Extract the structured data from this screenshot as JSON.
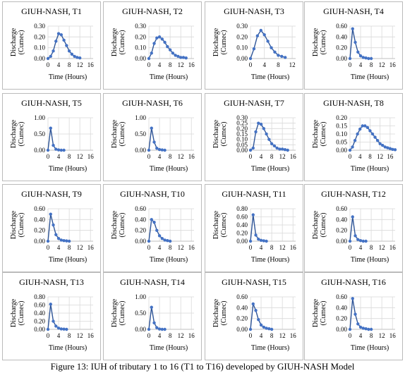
{
  "caption": "Figure 13: IUH of tributary 1 to 16 (T1 to T16) developed by GIUH-NASH Model",
  "chart_data": [
    {
      "type": "line",
      "title": "GIUH-NASH, T1",
      "ylabel": [
        "Discharge",
        "(Cumec)"
      ],
      "xlabel": "Time (Hours)",
      "color": "#4472c4",
      "grid": true,
      "x": [
        0,
        1,
        2,
        3,
        4,
        5,
        6,
        7,
        8,
        9,
        10,
        11,
        12
      ],
      "values": [
        0,
        0.02,
        0.07,
        0.16,
        0.23,
        0.22,
        0.17,
        0.12,
        0.07,
        0.04,
        0.02,
        0.01,
        0.005
      ],
      "xlim": [
        0,
        17
      ],
      "xticks": [
        0,
        4,
        8,
        12,
        16
      ],
      "ylim": [
        0,
        0.3
      ],
      "yticks": [
        {
          "value": 0,
          "label": "0.00"
        },
        {
          "value": 0.1,
          "label": "0.10"
        },
        {
          "value": 0.2,
          "label": "0.20"
        },
        {
          "value": 0.3,
          "label": "0.30"
        }
      ]
    },
    {
      "type": "line",
      "title": "GIUH-NASH, T2",
      "ylabel": [
        "Discharge",
        "(Cumec)"
      ],
      "xlabel": "Time (Hours)",
      "color": "#4472c4",
      "grid": true,
      "x": [
        0,
        1,
        2,
        3,
        4,
        5,
        6,
        7,
        8,
        9,
        10,
        11,
        12,
        13,
        14
      ],
      "values": [
        0,
        0.05,
        0.14,
        0.19,
        0.2,
        0.18,
        0.15,
        0.11,
        0.08,
        0.05,
        0.03,
        0.02,
        0.01,
        0.01,
        0.005
      ],
      "xlim": [
        0,
        17
      ],
      "xticks": [
        0,
        4,
        8,
        12,
        16
      ],
      "ylim": [
        0,
        0.3
      ],
      "yticks": [
        {
          "value": 0,
          "label": "0.00"
        },
        {
          "value": 0.1,
          "label": "0.10"
        },
        {
          "value": 0.2,
          "label": "0.20"
        },
        {
          "value": 0.3,
          "label": "0.30"
        }
      ]
    },
    {
      "type": "line",
      "title": "GIUH-NASH, T3",
      "ylabel": [
        "Discharge",
        "(Cumec)"
      ],
      "xlabel": "Time (Hours)",
      "color": "#4472c4",
      "grid": true,
      "x": [
        0,
        1,
        2,
        3,
        4,
        5,
        6,
        7,
        8,
        9,
        10
      ],
      "values": [
        0,
        0.09,
        0.21,
        0.26,
        0.22,
        0.16,
        0.1,
        0.06,
        0.03,
        0.02,
        0.01
      ],
      "xlim": [
        0,
        13
      ],
      "xticks": [
        0,
        4,
        8,
        12
      ],
      "ylim": [
        0,
        0.3
      ],
      "yticks": [
        {
          "value": 0,
          "label": "0.00"
        },
        {
          "value": 0.1,
          "label": "0.10"
        },
        {
          "value": 0.2,
          "label": "0.20"
        },
        {
          "value": 0.3,
          "label": "0.30"
        }
      ]
    },
    {
      "type": "line",
      "title": "GIUH-NASH, T4",
      "ylabel": [
        "Discharge",
        "(Cumec)"
      ],
      "xlabel": "Time (Hours)",
      "color": "#4472c4",
      "grid": true,
      "x": [
        0,
        1,
        2,
        3,
        4,
        5,
        6,
        7,
        8
      ],
      "values": [
        0,
        0.55,
        0.3,
        0.12,
        0.05,
        0.02,
        0.01,
        0,
        0
      ],
      "xlim": [
        0,
        17
      ],
      "xticks": [
        0,
        4,
        8,
        12,
        16
      ],
      "ylim": [
        0,
        0.6
      ],
      "yticks": [
        {
          "value": 0,
          "label": "0.00"
        },
        {
          "value": 0.2,
          "label": "0.20"
        },
        {
          "value": 0.4,
          "label": "0.40"
        },
        {
          "value": 0.6,
          "label": "0.60"
        }
      ]
    },
    {
      "type": "line",
      "title": "GIUH-NASH, T5",
      "ylabel": [
        "Discharge",
        "(Cumec)"
      ],
      "xlabel": "Time (Hours)",
      "color": "#4472c4",
      "grid": true,
      "x": [
        0,
        1,
        2,
        3,
        4,
        5,
        6
      ],
      "values": [
        0,
        0.68,
        0.15,
        0.03,
        0.01,
        0,
        0
      ],
      "xlim": [
        0,
        17
      ],
      "xticks": [
        0,
        4,
        8,
        12,
        16
      ],
      "ylim": [
        0,
        1
      ],
      "yticks": [
        {
          "value": 0,
          "label": "0.00"
        },
        {
          "value": 0.5,
          "label": "0.50"
        },
        {
          "value": 1,
          "label": "1.00"
        }
      ]
    },
    {
      "type": "line",
      "title": "GIUH-NASH, T6",
      "ylabel": [
        "Discharge",
        "(Cumec)"
      ],
      "xlabel": "Time (Hours)",
      "color": "#4472c4",
      "grid": true,
      "x": [
        0,
        1,
        2,
        3,
        4,
        5,
        6
      ],
      "values": [
        0,
        0.68,
        0.25,
        0.06,
        0.02,
        0.01,
        0
      ],
      "xlim": [
        0,
        17
      ],
      "xticks": [
        0,
        4,
        8,
        12,
        16
      ],
      "ylim": [
        0,
        1
      ],
      "yticks": [
        {
          "value": 0,
          "label": "0.00"
        },
        {
          "value": 0.5,
          "label": "0.50"
        },
        {
          "value": 1,
          "label": "1.00"
        }
      ]
    },
    {
      "type": "line",
      "title": "GIUH-NASH, T7",
      "ylabel": [
        "Discharge",
        "(Cumec)"
      ],
      "xlabel": "Time (Hours)",
      "color": "#4472c4",
      "grid": true,
      "x": [
        0,
        1,
        2,
        3,
        4,
        5,
        6,
        7,
        8,
        9,
        10,
        11,
        12,
        13,
        14
      ],
      "values": [
        0,
        0.02,
        0.17,
        0.25,
        0.24,
        0.2,
        0.15,
        0.1,
        0.06,
        0.04,
        0.02,
        0.01,
        0.01,
        0.005,
        0
      ],
      "xlim": [
        0,
        17
      ],
      "xticks": [
        0,
        4,
        8,
        12,
        16
      ],
      "ylim": [
        0,
        0.3
      ],
      "yticks": [
        {
          "value": 0,
          "label": "0.00"
        },
        {
          "value": 0.05,
          "label": "0.05"
        },
        {
          "value": 0.1,
          "label": "0.10"
        },
        {
          "value": 0.15,
          "label": "0.15"
        },
        {
          "value": 0.2,
          "label": "0.20"
        },
        {
          "value": 0.25,
          "label": "0.25"
        },
        {
          "value": 0.3,
          "label": "0.30"
        }
      ]
    },
    {
      "type": "line",
      "title": "GIUH-NASH, T8",
      "ylabel": [
        "Discharge",
        "(Cumec)"
      ],
      "xlabel": "Time (Hours)",
      "color": "#4472c4",
      "grid": true,
      "x": [
        0,
        1,
        2,
        3,
        4,
        5,
        6,
        7,
        8,
        9,
        10,
        11,
        12,
        13,
        14,
        15,
        16,
        17,
        18
      ],
      "values": [
        0,
        0.02,
        0.06,
        0.1,
        0.13,
        0.15,
        0.15,
        0.14,
        0.12,
        0.1,
        0.08,
        0.06,
        0.04,
        0.03,
        0.02,
        0.015,
        0.01,
        0.005,
        0.003
      ],
      "xlim": [
        0,
        18
      ],
      "xticks": [
        0,
        4,
        8,
        12,
        16
      ],
      "ylim": [
        0,
        0.2
      ],
      "yticks": [
        {
          "value": 0,
          "label": "0.00"
        },
        {
          "value": 0.05,
          "label": "0.05"
        },
        {
          "value": 0.1,
          "label": "0.10"
        },
        {
          "value": 0.15,
          "label": "0.15"
        },
        {
          "value": 0.2,
          "label": "0.20"
        }
      ]
    },
    {
      "type": "line",
      "title": "GIUH-NASH, T9",
      "ylabel": [
        "Discharge",
        "(Cumec)"
      ],
      "xlabel": "Time (Hours)",
      "color": "#4472c4",
      "grid": true,
      "x": [
        0,
        1,
        2,
        3,
        4,
        5,
        6,
        7,
        8
      ],
      "values": [
        0,
        0.5,
        0.3,
        0.12,
        0.05,
        0.02,
        0.01,
        0.005,
        0
      ],
      "xlim": [
        0,
        17
      ],
      "xticks": [
        0,
        4,
        8,
        12,
        16
      ],
      "ylim": [
        0,
        0.6
      ],
      "yticks": [
        {
          "value": 0,
          "label": "0.00"
        },
        {
          "value": 0.2,
          "label": "0.20"
        },
        {
          "value": 0.4,
          "label": "0.40"
        },
        {
          "value": 0.6,
          "label": "0.60"
        }
      ]
    },
    {
      "type": "line",
      "title": "GIUH-NASH, T10",
      "ylabel": [
        "Discharge",
        "(Cumec)"
      ],
      "xlabel": "Time (Hours)",
      "color": "#4472c4",
      "grid": true,
      "x": [
        0,
        1,
        2,
        3,
        4,
        5,
        6,
        7,
        8
      ],
      "values": [
        0,
        0.4,
        0.35,
        0.2,
        0.1,
        0.05,
        0.02,
        0.01,
        0
      ],
      "xlim": [
        0,
        17
      ],
      "xticks": [
        0,
        4,
        8,
        12,
        16
      ],
      "ylim": [
        0,
        0.6
      ],
      "yticks": [
        {
          "value": 0,
          "label": "0.00"
        },
        {
          "value": 0.2,
          "label": "0.20"
        },
        {
          "value": 0.4,
          "label": "0.40"
        },
        {
          "value": 0.6,
          "label": "0.60"
        }
      ]
    },
    {
      "type": "line",
      "title": "GIUH-NASH, T11",
      "ylabel": [
        "Discharge",
        "(Cumec)"
      ],
      "xlabel": "Time (Hours)",
      "color": "#4472c4",
      "grid": true,
      "x": [
        0,
        1,
        2,
        3,
        4,
        5,
        6
      ],
      "values": [
        0,
        0.65,
        0.15,
        0.05,
        0.02,
        0.01,
        0
      ],
      "xlim": [
        0,
        17
      ],
      "xticks": [
        0,
        4,
        8,
        12,
        16
      ],
      "ylim": [
        0,
        0.8
      ],
      "yticks": [
        {
          "value": 0,
          "label": "0.00"
        },
        {
          "value": 0.2,
          "label": "0.20"
        },
        {
          "value": 0.4,
          "label": "0.40"
        },
        {
          "value": 0.6,
          "label": "0.60"
        },
        {
          "value": 0.8,
          "label": "0.80"
        }
      ]
    },
    {
      "type": "line",
      "title": "GIUH-NASH, T12",
      "ylabel": [
        "Discharge",
        "(Cumec)"
      ],
      "xlabel": "Time (Hours)",
      "color": "#4472c4",
      "grid": true,
      "x": [
        0,
        1,
        2,
        3,
        4,
        5,
        6
      ],
      "values": [
        0,
        0.45,
        0.1,
        0.03,
        0.01,
        0,
        0
      ],
      "xlim": [
        0,
        17
      ],
      "xticks": [
        0,
        4,
        8,
        12,
        16
      ],
      "ylim": [
        0,
        0.6
      ],
      "yticks": [
        {
          "value": 0,
          "label": "0.00"
        },
        {
          "value": 0.2,
          "label": "0.20"
        },
        {
          "value": 0.4,
          "label": "0.40"
        },
        {
          "value": 0.6,
          "label": "0.60"
        }
      ]
    },
    {
      "type": "line",
      "title": "GIUH-NASH, T13",
      "ylabel": [
        "Discharge",
        "(Cumec)"
      ],
      "xlabel": "Time (Hours)",
      "color": "#4472c4",
      "grid": true,
      "x": [
        0,
        1,
        2,
        3,
        4,
        5,
        6,
        7
      ],
      "values": [
        0,
        0.62,
        0.2,
        0.08,
        0.03,
        0.01,
        0.005,
        0
      ],
      "xlim": [
        0,
        17
      ],
      "xticks": [
        0,
        4,
        8,
        12,
        16
      ],
      "ylim": [
        0,
        0.8
      ],
      "yticks": [
        {
          "value": 0,
          "label": "0.00"
        },
        {
          "value": 0.2,
          "label": "0.20"
        },
        {
          "value": 0.4,
          "label": "0.40"
        },
        {
          "value": 0.6,
          "label": "0.60"
        },
        {
          "value": 0.8,
          "label": "0.80"
        }
      ]
    },
    {
      "type": "line",
      "title": "GIUH-NASH, T14",
      "ylabel": [
        "Discharge",
        "(Cumec)"
      ],
      "xlabel": "Time (Hours)",
      "color": "#4472c4",
      "grid": true,
      "x": [
        0,
        1,
        2,
        3,
        4,
        5,
        6
      ],
      "values": [
        0,
        0.68,
        0.2,
        0.05,
        0.01,
        0,
        0
      ],
      "xlim": [
        0,
        17
      ],
      "xticks": [
        0,
        4,
        8,
        12,
        16
      ],
      "ylim": [
        0,
        1
      ],
      "yticks": [
        {
          "value": 0,
          "label": "0.00"
        },
        {
          "value": 0.5,
          "label": "0.50"
        },
        {
          "value": 1,
          "label": "1.00"
        }
      ]
    },
    {
      "type": "line",
      "title": "GIUH-NASH, T15",
      "ylabel": [
        "Discharge",
        "(Cumec)"
      ],
      "xlabel": "Time (Hours)",
      "color": "#4472c4",
      "grid": true,
      "x": [
        0,
        1,
        2,
        3,
        4,
        5,
        6,
        7,
        8
      ],
      "values": [
        0,
        0.47,
        0.35,
        0.18,
        0.08,
        0.04,
        0.02,
        0.01,
        0
      ],
      "xlim": [
        0,
        17
      ],
      "xticks": [
        0,
        4,
        8,
        12,
        16
      ],
      "ylim": [
        0,
        0.6
      ],
      "yticks": [
        {
          "value": 0,
          "label": "0.00"
        },
        {
          "value": 0.2,
          "label": "0.20"
        },
        {
          "value": 0.4,
          "label": "0.40"
        },
        {
          "value": 0.6,
          "label": "0.60"
        }
      ]
    },
    {
      "type": "line",
      "title": "GIUH-NASH, T16",
      "ylabel": [
        "Discharge",
        "(Cumec)"
      ],
      "xlabel": "Time (Hours)",
      "color": "#4472c4",
      "grid": true,
      "x": [
        0,
        1,
        2,
        3,
        4,
        5,
        6,
        7,
        8
      ],
      "values": [
        0,
        0.57,
        0.28,
        0.1,
        0.04,
        0.02,
        0.01,
        0,
        0
      ],
      "xlim": [
        0,
        17
      ],
      "xticks": [
        0,
        4,
        8,
        12,
        16
      ],
      "ylim": [
        0,
        0.6
      ],
      "yticks": [
        {
          "value": 0,
          "label": "0.00"
        },
        {
          "value": 0.2,
          "label": "0.20"
        },
        {
          "value": 0.4,
          "label": "0.40"
        },
        {
          "value": 0.6,
          "label": "0.60"
        }
      ]
    }
  ]
}
